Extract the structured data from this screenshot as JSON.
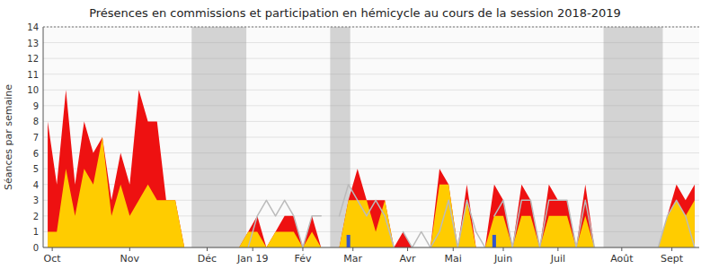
{
  "chart_data": {
    "type": "area",
    "title": "Présences en commissions et participation en hémicycle au cours de la session 2018-2019",
    "y_label": "Séances par semaine",
    "x": [
      0,
      1,
      2,
      3,
      4,
      5,
      6,
      7,
      8,
      9,
      10,
      11,
      12,
      13,
      14,
      15,
      16,
      17,
      18,
      19,
      20,
      21,
      22,
      23,
      24,
      25,
      26,
      27,
      28,
      29,
      30,
      31,
      32,
      33,
      34,
      35,
      36,
      37,
      38,
      39,
      40,
      41,
      42,
      43,
      44,
      45,
      46,
      47,
      48,
      49,
      50,
      51,
      52,
      53,
      54,
      55,
      56,
      57,
      58,
      59,
      60,
      61,
      62,
      63,
      64,
      65,
      66,
      67,
      68,
      69,
      70,
      71
    ],
    "xlim": [
      -0.5,
      71.5
    ],
    "xticks": [
      {
        "value": 0.5,
        "label": "Oct"
      },
      {
        "value": 9,
        "label": "Nov"
      },
      {
        "value": 17.5,
        "label": "Déc"
      },
      {
        "value": 22.5,
        "label": "Jan 19"
      },
      {
        "value": 28,
        "label": "Fév"
      },
      {
        "value": 33.5,
        "label": "Mar"
      },
      {
        "value": 39.5,
        "label": "Avr"
      },
      {
        "value": 44.5,
        "label": "Mai"
      },
      {
        "value": 50,
        "label": "Juin"
      },
      {
        "value": 56,
        "label": "Juil"
      },
      {
        "value": 63,
        "label": "Août"
      },
      {
        "value": 68.5,
        "label": "Sept"
      }
    ],
    "ylim": [
      0,
      14
    ],
    "yticks": [
      0,
      1,
      2,
      3,
      4,
      5,
      6,
      7,
      8,
      9,
      10,
      11,
      12,
      13,
      14
    ],
    "grid": true,
    "bands": {
      "color": "#999999",
      "ranges": [
        [
          15.8,
          21.8
        ],
        [
          31.0,
          33.2
        ],
        [
          61.0,
          67.5
        ]
      ]
    },
    "series": [
      {
        "type": "area",
        "color": "#ee1111",
        "values": [
          8,
          4,
          10,
          4,
          8,
          6,
          7,
          3,
          6,
          4,
          10,
          8,
          8,
          3,
          3,
          0,
          0,
          0,
          0,
          0,
          0,
          0,
          1,
          2,
          0,
          1,
          2,
          2,
          0,
          2,
          0,
          0,
          0,
          3,
          5,
          3,
          3,
          3,
          0,
          1,
          0,
          0,
          0,
          5,
          4,
          0,
          4,
          0,
          0,
          4,
          3,
          0,
          4,
          3,
          0,
          4,
          3,
          3,
          0,
          4,
          0,
          0,
          0,
          0,
          0,
          0,
          0,
          0,
          2,
          4,
          3,
          4
        ]
      },
      {
        "type": "area",
        "color": "#ffcc00",
        "values": [
          1,
          1,
          5,
          2,
          5,
          4,
          7,
          2,
          4,
          2,
          3,
          4,
          3,
          3,
          3,
          0,
          0,
          0,
          0,
          0,
          0,
          0,
          1,
          1,
          0,
          1,
          1,
          1,
          0,
          1,
          0,
          0,
          0,
          3,
          3,
          3,
          1,
          3,
          0,
          0,
          0,
          0,
          0,
          4,
          4,
          0,
          3,
          0,
          0,
          2,
          2,
          0,
          2,
          2,
          0,
          2,
          2,
          2,
          0,
          2,
          0,
          0,
          0,
          0,
          0,
          0,
          0,
          0,
          2,
          3,
          2,
          3
        ]
      },
      {
        "type": "line",
        "color": "#bbbbbb",
        "x": [
          22,
          23,
          24,
          25,
          26,
          27,
          28,
          29,
          30
        ],
        "values": [
          0,
          2,
          3,
          2,
          3,
          2,
          0,
          2,
          2
        ]
      },
      {
        "type": "line",
        "color": "#bbbbbb",
        "x": [
          32,
          33,
          34,
          35,
          36,
          37,
          38
        ],
        "values": [
          2,
          4,
          3,
          2,
          3,
          2,
          0
        ]
      },
      {
        "type": "line",
        "color": "#bbbbbb",
        "x": [
          39,
          40,
          41,
          42,
          43,
          44,
          45,
          46,
          47,
          48
        ],
        "values": [
          1,
          0,
          1,
          0,
          1,
          3,
          0,
          3,
          1,
          0
        ]
      },
      {
        "type": "line",
        "color": "#bbbbbb",
        "x": [
          49,
          50,
          51,
          52,
          53,
          54,
          55,
          56,
          57,
          58,
          59,
          60
        ],
        "values": [
          2,
          3,
          0,
          3,
          3,
          0,
          3,
          3,
          3,
          0,
          3,
          0
        ]
      },
      {
        "type": "line",
        "color": "#bbbbbb",
        "x": [
          67,
          68,
          69,
          70,
          71
        ],
        "values": [
          0,
          2,
          3,
          2,
          0
        ]
      },
      {
        "type": "bar",
        "color": "#3355cc",
        "x": [
          33,
          49
        ],
        "values": [
          0.8,
          0.8
        ]
      }
    ]
  }
}
